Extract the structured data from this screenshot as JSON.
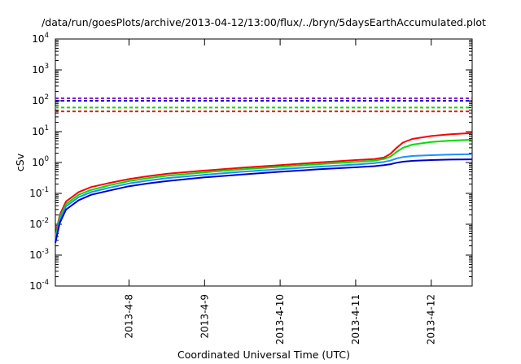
{
  "chart_data": {
    "type": "line",
    "title": "/data/run/goesPlots/archive/2013-04-12/13:00/flux/../bryn/5daysEarthAccumulated.plot",
    "xlabel": "Coordinated Universal Time (UTC)",
    "ylabel": "cSv",
    "xlim": [
      "2013-04-07 00:36",
      "2013-04-12 13:00"
    ],
    "ylim": [
      0.0001,
      10000
    ],
    "yscale": "log",
    "grid": false,
    "legend": "none",
    "x_ticks": [
      "2013-4-8",
      "2013-4-9",
      "2013-4-10",
      "2013-4-11",
      "2013-4-12"
    ],
    "y_ticks": [
      {
        "base": "10",
        "exp": "-4",
        "value": 0.0001
      },
      {
        "base": "10",
        "exp": "-3",
        "value": 0.001
      },
      {
        "base": "10",
        "exp": "-2",
        "value": 0.01
      },
      {
        "base": "10",
        "exp": "-1",
        "value": 0.1
      },
      {
        "base": "10",
        "exp": "0",
        "value": 1
      },
      {
        "base": "10",
        "exp": "1",
        "value": 10
      },
      {
        "base": "10",
        "exp": "2",
        "value": 100
      },
      {
        "base": "10",
        "exp": "3",
        "value": 1000
      },
      {
        "base": "10",
        "exp": "4",
        "value": 10000
      }
    ],
    "thresholds": [
      {
        "color": "#9400d3",
        "value": 120
      },
      {
        "color": "#0000cd",
        "value": 100
      },
      {
        "color": "#00dd00",
        "value": 60
      },
      {
        "color": "#ff0000",
        "value": 45
      }
    ],
    "series": [
      {
        "color": "#ff0000",
        "points": [
          [
            "2013-04-07 00:36",
            0.004
          ],
          [
            "2013-04-07 02:00",
            0.02
          ],
          [
            "2013-04-07 04:00",
            0.055
          ],
          [
            "2013-04-07 08:00",
            0.11
          ],
          [
            "2013-04-07 12:00",
            0.16
          ],
          [
            "2013-04-07 18:00",
            0.22
          ],
          [
            "2013-04-08 00:00",
            0.29
          ],
          [
            "2013-04-08 06:00",
            0.36
          ],
          [
            "2013-04-08 12:00",
            0.43
          ],
          [
            "2013-04-09 00:00",
            0.55
          ],
          [
            "2013-04-09 12:00",
            0.68
          ],
          [
            "2013-04-10 00:00",
            0.82
          ],
          [
            "2013-04-10 12:00",
            1.0
          ],
          [
            "2013-04-11 00:00",
            1.2
          ],
          [
            "2013-04-11 06:00",
            1.3
          ],
          [
            "2013-04-11 09:00",
            1.45
          ],
          [
            "2013-04-11 11:00",
            1.9
          ],
          [
            "2013-04-11 13:00",
            3.0
          ],
          [
            "2013-04-11 15:00",
            4.4
          ],
          [
            "2013-04-11 18:00",
            5.8
          ],
          [
            "2013-04-12 00:00",
            7.2
          ],
          [
            "2013-04-12 06:00",
            8.2
          ],
          [
            "2013-04-12 13:00",
            9.0
          ]
        ]
      },
      {
        "color": "#00dd00",
        "points": [
          [
            "2013-04-07 00:36",
            0.0035
          ],
          [
            "2013-04-07 02:00",
            0.017
          ],
          [
            "2013-04-07 04:00",
            0.045
          ],
          [
            "2013-04-07 08:00",
            0.09
          ],
          [
            "2013-04-07 12:00",
            0.13
          ],
          [
            "2013-04-07 18:00",
            0.185
          ],
          [
            "2013-04-08 00:00",
            0.25
          ],
          [
            "2013-04-08 06:00",
            0.31
          ],
          [
            "2013-04-08 12:00",
            0.37
          ],
          [
            "2013-04-09 00:00",
            0.48
          ],
          [
            "2013-04-09 12:00",
            0.6
          ],
          [
            "2013-04-10 00:00",
            0.73
          ],
          [
            "2013-04-10 12:00",
            0.88
          ],
          [
            "2013-04-11 00:00",
            1.05
          ],
          [
            "2013-04-11 06:00",
            1.15
          ],
          [
            "2013-04-11 09:00",
            1.3
          ],
          [
            "2013-04-11 11:00",
            1.55
          ],
          [
            "2013-04-11 13:00",
            2.2
          ],
          [
            "2013-04-11 15:00",
            3.0
          ],
          [
            "2013-04-11 18:00",
            3.8
          ],
          [
            "2013-04-12 00:00",
            4.6
          ],
          [
            "2013-04-12 06:00",
            5.1
          ],
          [
            "2013-04-12 13:00",
            5.5
          ]
        ]
      },
      {
        "color": "#1e90ff",
        "points": [
          [
            "2013-04-07 00:36",
            0.003
          ],
          [
            "2013-04-07 02:00",
            0.014
          ],
          [
            "2013-04-07 04:00",
            0.038
          ],
          [
            "2013-04-07 08:00",
            0.075
          ],
          [
            "2013-04-07 12:00",
            0.11
          ],
          [
            "2013-04-07 18:00",
            0.155
          ],
          [
            "2013-04-08 00:00",
            0.21
          ],
          [
            "2013-04-08 06:00",
            0.26
          ],
          [
            "2013-04-08 12:00",
            0.31
          ],
          [
            "2013-04-09 00:00",
            0.4
          ],
          [
            "2013-04-09 12:00",
            0.5
          ],
          [
            "2013-04-10 00:00",
            0.61
          ],
          [
            "2013-04-10 12:00",
            0.73
          ],
          [
            "2013-04-11 00:00",
            0.86
          ],
          [
            "2013-04-11 06:00",
            0.95
          ],
          [
            "2013-04-11 09:00",
            1.05
          ],
          [
            "2013-04-11 11:00",
            1.15
          ],
          [
            "2013-04-11 13:00",
            1.35
          ],
          [
            "2013-04-11 15:00",
            1.5
          ],
          [
            "2013-04-11 18:00",
            1.62
          ],
          [
            "2013-04-12 00:00",
            1.72
          ],
          [
            "2013-04-12 06:00",
            1.8
          ],
          [
            "2013-04-12 13:00",
            1.85
          ]
        ]
      },
      {
        "color": "#0000cd",
        "points": [
          [
            "2013-04-07 00:36",
            0.0025
          ],
          [
            "2013-04-07 02:00",
            0.011
          ],
          [
            "2013-04-07 04:00",
            0.03
          ],
          [
            "2013-04-07 08:00",
            0.06
          ],
          [
            "2013-04-07 12:00",
            0.09
          ],
          [
            "2013-04-07 18:00",
            0.125
          ],
          [
            "2013-04-08 00:00",
            0.17
          ],
          [
            "2013-04-08 06:00",
            0.21
          ],
          [
            "2013-04-08 12:00",
            0.25
          ],
          [
            "2013-04-09 00:00",
            0.33
          ],
          [
            "2013-04-09 12:00",
            0.41
          ],
          [
            "2013-04-10 00:00",
            0.5
          ],
          [
            "2013-04-10 12:00",
            0.6
          ],
          [
            "2013-04-11 00:00",
            0.7
          ],
          [
            "2013-04-11 06:00",
            0.76
          ],
          [
            "2013-04-11 09:00",
            0.82
          ],
          [
            "2013-04-11 11:00",
            0.88
          ],
          [
            "2013-04-11 13:00",
            0.98
          ],
          [
            "2013-04-11 15:00",
            1.06
          ],
          [
            "2013-04-11 18:00",
            1.13
          ],
          [
            "2013-04-12 00:00",
            1.2
          ],
          [
            "2013-04-12 06:00",
            1.24
          ],
          [
            "2013-04-12 13:00",
            1.27
          ]
        ]
      }
    ]
  }
}
